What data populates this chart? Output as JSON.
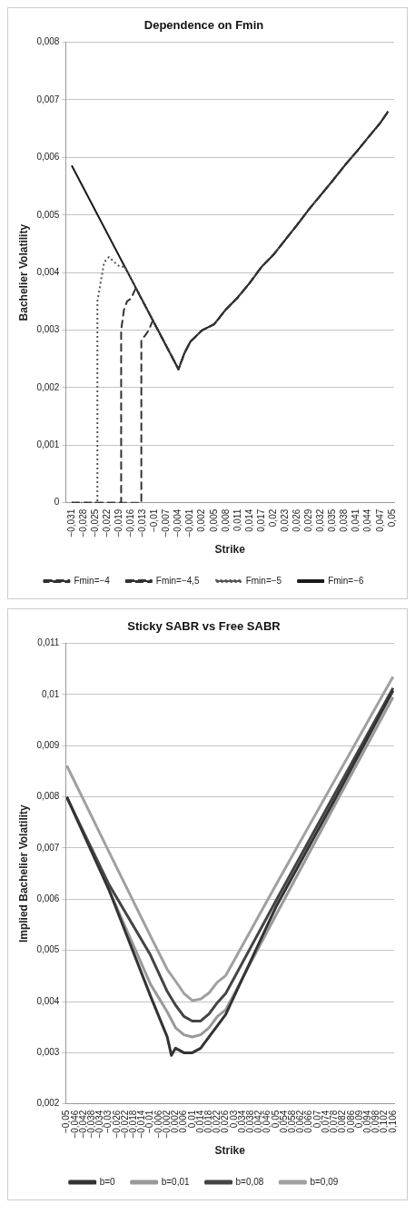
{
  "chart_data": [
    {
      "type": "line",
      "title": "Dependence on Fmin",
      "xlabel": "Strike",
      "ylabel": "Bachelier Volatility",
      "xlim": [
        -0.0325,
        0.0505
      ],
      "xticks": [
        {
          "value": -0.031,
          "label": "−0,031"
        },
        {
          "value": -0.028,
          "label": "−0,028"
        },
        {
          "value": -0.025,
          "label": "−0,025"
        },
        {
          "value": -0.022,
          "label": "−0,022"
        },
        {
          "value": -0.019,
          "label": "−0,019"
        },
        {
          "value": -0.016,
          "label": "−0,016"
        },
        {
          "value": -0.013,
          "label": "−0,013"
        },
        {
          "value": -0.01,
          "label": "−0,01"
        },
        {
          "value": -0.007,
          "label": "−0,007"
        },
        {
          "value": -0.004,
          "label": "−0,004"
        },
        {
          "value": -0.001,
          "label": "−0,001"
        },
        {
          "value": 0.002,
          "label": "0,002"
        },
        {
          "value": 0.005,
          "label": "0,005"
        },
        {
          "value": 0.008,
          "label": "0,008"
        },
        {
          "value": 0.011,
          "label": "0,011"
        },
        {
          "value": 0.014,
          "label": "0,014"
        },
        {
          "value": 0.017,
          "label": "0,017"
        },
        {
          "value": 0.02,
          "label": "0,02"
        },
        {
          "value": 0.023,
          "label": "0,023"
        },
        {
          "value": 0.026,
          "label": "0,026"
        },
        {
          "value": 0.029,
          "label": "0,029"
        },
        {
          "value": 0.032,
          "label": "0,032"
        },
        {
          "value": 0.035,
          "label": "0,035"
        },
        {
          "value": 0.038,
          "label": "0,038"
        },
        {
          "value": 0.041,
          "label": "0,041"
        },
        {
          "value": 0.044,
          "label": "0,044"
        },
        {
          "value": 0.047,
          "label": "0,047"
        },
        {
          "value": 0.05,
          "label": "0,05"
        }
      ],
      "ylim": [
        0,
        0.008
      ],
      "yticks": [
        0,
        {
          "value": 0.001,
          "label": "0,001"
        },
        {
          "value": 0.002,
          "label": "0,002"
        },
        {
          "value": 0.003,
          "label": "0,003"
        },
        {
          "value": 0.004,
          "label": "0,004"
        },
        {
          "value": 0.005,
          "label": "0,005"
        },
        {
          "value": 0.006,
          "label": "0,006"
        },
        {
          "value": 0.007,
          "label": "0,007"
        },
        {
          "value": 0.008,
          "label": "0,008"
        }
      ],
      "grid": "y",
      "legend": "bottom",
      "series": [
        {
          "name": "Fmin=−4",
          "color": "#333333",
          "line_style": "dashed",
          "x": [
            -0.031,
            -0.0134,
            -0.0134,
            -0.0125,
            -0.0115,
            -0.0105,
            -0.004,
            -0.0025,
            -0.001,
            0.002,
            0.005,
            0.008,
            0.011,
            0.014,
            0.017,
            0.02,
            0.023,
            0.026,
            0.029,
            0.032,
            0.035,
            0.038,
            0.041,
            0.044,
            0.047,
            0.049
          ],
          "values": [
            0,
            0,
            0.00284,
            0.0029,
            0.003,
            0.00317,
            0.00232,
            0.0026,
            0.0028,
            0.003,
            0.0031,
            0.00336,
            0.00357,
            0.00382,
            0.0041,
            0.00431,
            0.00457,
            0.00483,
            0.0051,
            0.00535,
            0.0056,
            0.00586,
            0.0061,
            0.00635,
            0.0066,
            0.0068
          ]
        },
        {
          "name": "Fmin=−4,5",
          "color": "#333333",
          "line_style": "dashed",
          "x": [
            -0.031,
            -0.0185,
            -0.0185,
            -0.0178,
            -0.017,
            -0.016,
            -0.0148,
            -0.004,
            -0.0025,
            -0.001,
            0.002,
            0.005,
            0.008,
            0.011,
            0.014,
            0.017,
            0.02,
            0.023,
            0.026,
            0.029,
            0.032,
            0.035,
            0.038,
            0.041,
            0.044,
            0.047,
            0.049
          ],
          "values": [
            0,
            0,
            0.003,
            0.00335,
            0.0035,
            0.00355,
            0.00373,
            0.00232,
            0.0026,
            0.0028,
            0.003,
            0.0031,
            0.00336,
            0.00357,
            0.00382,
            0.0041,
            0.00431,
            0.00457,
            0.00483,
            0.0051,
            0.00535,
            0.0056,
            0.00586,
            0.0061,
            0.00635,
            0.0066,
            0.0068
          ]
        },
        {
          "name": "Fmin=−5",
          "color": "#555555",
          "line_style": "dotted",
          "x": [
            -0.031,
            -0.0245,
            -0.0245,
            -0.0228,
            -0.0216,
            -0.0202,
            -0.0188,
            -0.0175,
            -0.004,
            -0.0025,
            -0.001,
            0.002,
            0.005,
            0.008,
            0.011,
            0.014,
            0.017,
            0.02,
            0.023,
            0.026,
            0.029,
            0.032,
            0.035,
            0.038,
            0.041,
            0.044,
            0.047,
            0.049
          ],
          "values": [
            0,
            0,
            0.0035,
            0.00418,
            0.00427,
            0.00418,
            0.0041,
            0.0041,
            0.00232,
            0.0026,
            0.0028,
            0.003,
            0.0031,
            0.00336,
            0.00357,
            0.00382,
            0.0041,
            0.00431,
            0.00457,
            0.00483,
            0.0051,
            0.00535,
            0.0056,
            0.00586,
            0.0061,
            0.00635,
            0.0066,
            0.0068
          ]
        },
        {
          "name": "Fmin=−6",
          "color": "#1a1a1a",
          "line_style": "solid",
          "x": [
            -0.031,
            -0.004,
            -0.0025,
            -0.001,
            0.002,
            0.005,
            0.008,
            0.011,
            0.014,
            0.017,
            0.02,
            0.023,
            0.026,
            0.029,
            0.032,
            0.035,
            0.038,
            0.041,
            0.044,
            0.047,
            0.049
          ],
          "values": [
            0.00586,
            0.00232,
            0.0026,
            0.0028,
            0.003,
            0.0031,
            0.00336,
            0.00357,
            0.00382,
            0.0041,
            0.00431,
            0.00457,
            0.00483,
            0.0051,
            0.00535,
            0.0056,
            0.00586,
            0.0061,
            0.00635,
            0.0066,
            0.0068
          ]
        }
      ]
    },
    {
      "type": "line",
      "title": "Sticky SABR vs Free SABR",
      "xlabel": "Strike",
      "ylabel": "Implied Bachelier Volatility",
      "xlim": [
        -0.0505,
        0.1065
      ],
      "xticks": [
        {
          "value": -0.05,
          "label": "−0,05"
        },
        {
          "value": -0.046,
          "label": "−0,046"
        },
        {
          "value": -0.042,
          "label": "−0,042"
        },
        {
          "value": -0.038,
          "label": "−0,038"
        },
        {
          "value": -0.034,
          "label": "−0,034"
        },
        {
          "value": -0.03,
          "label": "−0,03"
        },
        {
          "value": -0.026,
          "label": "−0,026"
        },
        {
          "value": -0.022,
          "label": "−0,022"
        },
        {
          "value": -0.018,
          "label": "−0,018"
        },
        {
          "value": -0.014,
          "label": "−0,014"
        },
        {
          "value": -0.01,
          "label": "−0,01"
        },
        {
          "value": -0.006,
          "label": "−0,006"
        },
        {
          "value": -0.002,
          "label": "−0,002"
        },
        {
          "value": 0.002,
          "label": "0,002"
        },
        {
          "value": 0.006,
          "label": "0,006"
        },
        {
          "value": 0.01,
          "label": "0,01"
        },
        {
          "value": 0.014,
          "label": "0,014"
        },
        {
          "value": 0.018,
          "label": "0,018"
        },
        {
          "value": 0.022,
          "label": "0,022"
        },
        {
          "value": 0.026,
          "label": "0,026"
        },
        {
          "value": 0.03,
          "label": "0,03"
        },
        {
          "value": 0.034,
          "label": "0,034"
        },
        {
          "value": 0.038,
          "label": "0,038"
        },
        {
          "value": 0.042,
          "label": "0,042"
        },
        {
          "value": 0.046,
          "label": "0,046"
        },
        {
          "value": 0.05,
          "label": "0,05"
        },
        {
          "value": 0.054,
          "label": "0,054"
        },
        {
          "value": 0.058,
          "label": "0,058"
        },
        {
          "value": 0.062,
          "label": "0,062"
        },
        {
          "value": 0.066,
          "label": "0,066"
        },
        {
          "value": 0.07,
          "label": "0,07"
        },
        {
          "value": 0.074,
          "label": "0,074"
        },
        {
          "value": 0.078,
          "label": "0,078"
        },
        {
          "value": 0.082,
          "label": "0,082"
        },
        {
          "value": 0.086,
          "label": "0,086"
        },
        {
          "value": 0.09,
          "label": "0,09"
        },
        {
          "value": 0.094,
          "label": "0,094"
        },
        {
          "value": 0.098,
          "label": "0,098"
        },
        {
          "value": 0.102,
          "label": "0,102"
        },
        {
          "value": 0.106,
          "label": "0,106"
        }
      ],
      "ylim": [
        0.002,
        0.011
      ],
      "yticks": [
        {
          "value": 0.002,
          "label": "0,002"
        },
        {
          "value": 0.003,
          "label": "0,003"
        },
        {
          "value": 0.004,
          "label": "0,004"
        },
        {
          "value": 0.005,
          "label": "0,005"
        },
        {
          "value": 0.006,
          "label": "0,006"
        },
        {
          "value": 0.007,
          "label": "0,007"
        },
        {
          "value": 0.008,
          "label": "0,008"
        },
        {
          "value": 0.009,
          "label": "0,009"
        },
        {
          "value": 0.01,
          "label": "0,01"
        },
        {
          "value": 0.011,
          "label": "0,011"
        }
      ],
      "grid": "y",
      "legend": "bottom",
      "series": [
        {
          "name": "b=0",
          "color": "#333333",
          "x": [
            -0.05,
            -0.03,
            -0.01,
            -0.002,
            0,
            0.002,
            0.006,
            0.01,
            0.014,
            0.018,
            0.022,
            0.026,
            0.05,
            0.078,
            0.106
          ],
          "values": [
            0.008,
            0.0062,
            0.00411,
            0.00331,
            0.00295,
            0.00309,
            0.003,
            0.003,
            0.00309,
            0.00331,
            0.00353,
            0.00375,
            0.00585,
            0.00794,
            0.01008
          ]
        },
        {
          "name": "b=0,01",
          "color": "#999999",
          "x": [
            -0.05,
            -0.03,
            -0.01,
            -0.002,
            0.002,
            0.006,
            0.01,
            0.014,
            0.018,
            0.022,
            0.026,
            0.05,
            0.078,
            0.106
          ],
          "values": [
            0.008,
            0.0062,
            0.00434,
            0.0038,
            0.00349,
            0.00335,
            0.00331,
            0.00335,
            0.00349,
            0.00371,
            0.00384,
            0.00569,
            0.00783,
            0.00995
          ]
        },
        {
          "name": "b=0,08",
          "color": "#444444",
          "x": [
            -0.05,
            -0.03,
            -0.01,
            -0.002,
            0.002,
            0.006,
            0.01,
            0.014,
            0.018,
            0.022,
            0.026,
            0.05,
            0.078,
            0.106
          ],
          "values": [
            0.00799,
            0.0063,
            0.00491,
            0.0042,
            0.00393,
            0.00371,
            0.00362,
            0.00362,
            0.00376,
            0.00398,
            0.00416,
            0.00597,
            0.00805,
            0.01013
          ]
        },
        {
          "name": "b=0,09",
          "color": "#a0a0a0",
          "x": [
            -0.05,
            -0.03,
            -0.01,
            -0.002,
            0.002,
            0.006,
            0.01,
            0.014,
            0.018,
            0.022,
            0.026,
            0.05,
            0.078,
            0.106
          ],
          "values": [
            0.00861,
            0.00694,
            0.00528,
            0.00463,
            0.0044,
            0.00416,
            0.00402,
            0.00405,
            0.00417,
            0.00438,
            0.00451,
            0.00628,
            0.00832,
            0.01035
          ]
        }
      ]
    }
  ]
}
